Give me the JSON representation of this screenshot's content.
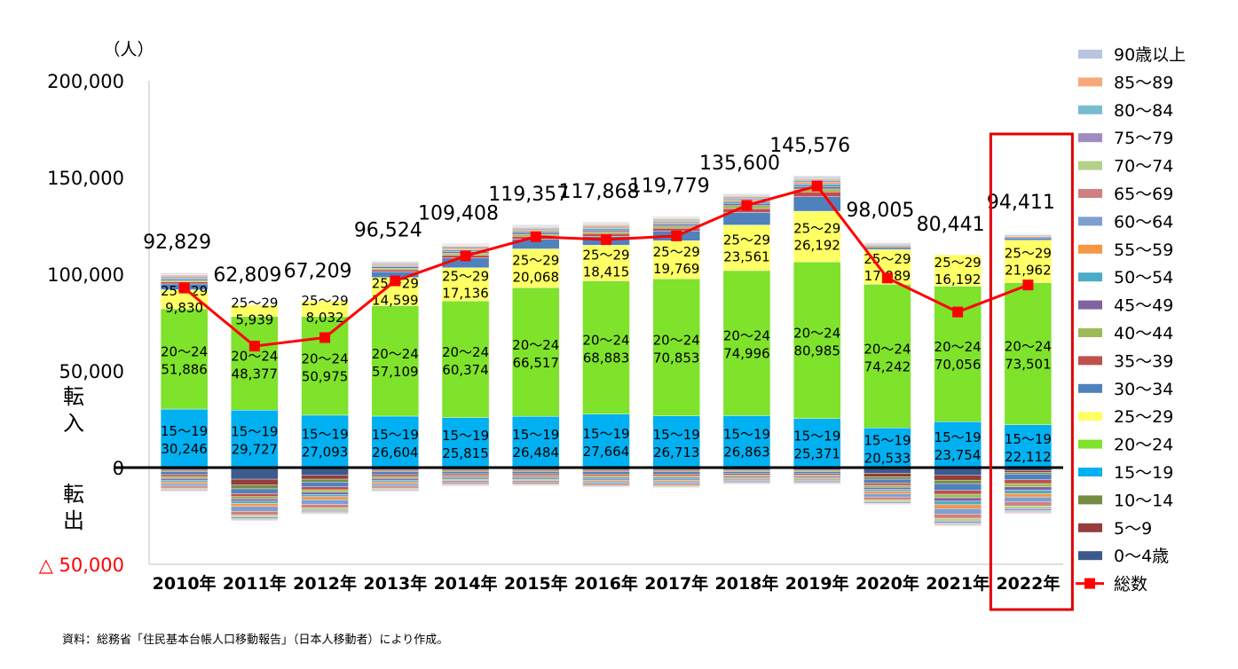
{
  "chart_data": {
    "type": "bar",
    "stacked": true,
    "unit_label": "（人）",
    "side_labels": {
      "in": "転入",
      "out": "転出"
    },
    "ylim": [
      -50000,
      200000
    ],
    "yticks": [
      {
        "value": 200000,
        "label": "200,000"
      },
      {
        "value": 150000,
        "label": "150,000"
      },
      {
        "value": 100000,
        "label": "100,000"
      },
      {
        "value": 50000,
        "label": "50,000"
      },
      {
        "value": 0,
        "label": "0"
      },
      {
        "value": -50000,
        "label": "△ 50,000"
      }
    ],
    "categories": [
      "2010年",
      "2011年",
      "2012年",
      "2013年",
      "2014年",
      "2015年",
      "2016年",
      "2017年",
      "2018年",
      "2019年",
      "2020年",
      "2021年",
      "2022年"
    ],
    "highlight_category": "2022年",
    "in_series": [
      {
        "name": "15～19",
        "color": "#00B0F0",
        "values": [
          30246,
          29727,
          27093,
          26604,
          25815,
          26484,
          27664,
          26713,
          26863,
          25371,
          20533,
          23754,
          22112
        ]
      },
      {
        "name": "20～24",
        "color": "#7FE22B",
        "values": [
          51886,
          48377,
          50975,
          57109,
          60374,
          66517,
          68883,
          70853,
          74996,
          80985,
          74242,
          70056,
          73501
        ]
      },
      {
        "name": "25～29",
        "color": "#FFFF66",
        "values": [
          9830,
          5939,
          8032,
          14599,
          17136,
          20068,
          18415,
          19769,
          23561,
          26192,
          17989,
          16192,
          21962
        ]
      },
      {
        "name": "30～34",
        "color": "#4F81BD",
        "values": [
          3000,
          0,
          0,
          3000,
          5000,
          5000,
          4500,
          5000,
          6500,
          7500,
          1000,
          0,
          1200
        ]
      },
      {
        "name": "35～39",
        "color": "#C0504D",
        "values": [
          1000,
          0,
          0,
          1000,
          1500,
          1500,
          1500,
          1500,
          2000,
          2500,
          500,
          0,
          500
        ]
      },
      {
        "name": "40～44",
        "color": "#9BBB59",
        "values": [
          800,
          0,
          0,
          800,
          1000,
          1000,
          1000,
          1000,
          1500,
          1500,
          500,
          0,
          400
        ]
      },
      {
        "name": "45～49",
        "color": "#8064A2",
        "values": [
          700,
          0,
          0,
          700,
          900,
          900,
          900,
          900,
          1200,
          1300,
          400,
          0,
          300
        ]
      },
      {
        "name": "50～54",
        "color": "#4BACC6",
        "values": [
          700,
          0,
          0,
          600,
          800,
          800,
          800,
          800,
          1000,
          1100,
          400,
          0,
          300
        ]
      },
      {
        "name": "55～59",
        "color": "#F79646",
        "values": [
          600,
          0,
          0,
          600,
          700,
          700,
          700,
          700,
          900,
          1000,
          300,
          0,
          300
        ]
      },
      {
        "name": "60～64",
        "color": "#7F9FCF",
        "values": [
          500,
          0,
          0,
          500,
          600,
          600,
          600,
          600,
          800,
          900,
          300,
          0,
          200
        ]
      },
      {
        "name": "65～69",
        "color": "#D08080",
        "values": [
          400,
          0,
          0,
          400,
          500,
          500,
          500,
          500,
          600,
          700,
          200,
          0,
          200
        ]
      },
      {
        "name": "70～74",
        "color": "#B4D08A",
        "values": [
          300,
          0,
          0,
          300,
          400,
          400,
          400,
          400,
          500,
          500,
          200,
          0,
          150
        ]
      },
      {
        "name": "75～79",
        "color": "#A08CC0",
        "values": [
          300,
          0,
          0,
          300,
          300,
          300,
          300,
          300,
          400,
          400,
          200,
          0,
          150
        ]
      },
      {
        "name": "80～84",
        "color": "#78BCD0",
        "values": [
          300,
          0,
          0,
          300,
          300,
          300,
          300,
          300,
          300,
          400,
          200,
          0,
          100
        ]
      },
      {
        "name": "85～89",
        "color": "#F8A878",
        "values": [
          200,
          0,
          0,
          200,
          300,
          300,
          300,
          300,
          300,
          300,
          200,
          0,
          100
        ]
      },
      {
        "name": "90歳以上",
        "color": "#B8C4E0",
        "values": [
          200,
          0,
          0,
          200,
          300,
          300,
          300,
          300,
          300,
          300,
          200,
          0,
          100
        ]
      }
    ],
    "out_series": [
      {
        "name": "0～4歳",
        "color": "#3C5A8C",
        "values": [
          -1000,
          -6000,
          -4000,
          -1000,
          -1000,
          -1000,
          -1000,
          -1000,
          -1000,
          -1000,
          -3000,
          -4000,
          -1500
        ]
      },
      {
        "name": "5～9",
        "color": "#963C3A",
        "values": [
          -700,
          -3000,
          -2000,
          -700,
          -700,
          -700,
          -700,
          -700,
          -600,
          -600,
          -1800,
          -2500,
          -1000
        ]
      },
      {
        "name": "10～14",
        "color": "#758C42",
        "values": [
          -500,
          -2000,
          -1500,
          -500,
          -500,
          -500,
          -500,
          -500,
          -500,
          -500,
          -1200,
          -1800,
          -800
        ]
      },
      {
        "name": "30～34",
        "color": "#4F81BD",
        "values": [
          -1500,
          -2500,
          -2500,
          -1500,
          -1000,
          -1000,
          -1200,
          -1200,
          -1000,
          -1000,
          -2000,
          -3500,
          -3000
        ]
      },
      {
        "name": "35～39",
        "color": "#C0504D",
        "values": [
          -1000,
          -1500,
          -1500,
          -1000,
          -800,
          -800,
          -900,
          -900,
          -800,
          -800,
          -1200,
          -2000,
          -2000
        ]
      },
      {
        "name": "40～44",
        "color": "#9BBB59",
        "values": [
          -900,
          -1200,
          -1200,
          -900,
          -700,
          -700,
          -800,
          -800,
          -700,
          -700,
          -1000,
          -1800,
          -1700
        ]
      },
      {
        "name": "45～49",
        "color": "#8064A2",
        "values": [
          -900,
          -1200,
          -1200,
          -900,
          -700,
          -700,
          -800,
          -800,
          -700,
          -700,
          -1000,
          -1800,
          -1700
        ]
      },
      {
        "name": "50～54",
        "color": "#4BACC6",
        "values": [
          -900,
          -1200,
          -1200,
          -900,
          -700,
          -700,
          -800,
          -800,
          -600,
          -600,
          -1000,
          -1800,
          -1700
        ]
      },
      {
        "name": "55～59",
        "color": "#F79646",
        "values": [
          -1000,
          -1500,
          -1500,
          -1000,
          -700,
          -700,
          -800,
          -800,
          -600,
          -600,
          -1200,
          -2000,
          -1800
        ]
      },
      {
        "name": "60～64",
        "color": "#7F9FCF",
        "values": [
          -1200,
          -2500,
          -2500,
          -1200,
          -1000,
          -900,
          -1000,
          -1000,
          -700,
          -700,
          -1800,
          -2800,
          -2600
        ]
      },
      {
        "name": "65～69",
        "color": "#D08080",
        "values": [
          -1000,
          -1800,
          -1800,
          -1000,
          -800,
          -800,
          -800,
          -800,
          -600,
          -600,
          -1500,
          -2200,
          -2000
        ]
      },
      {
        "name": "70～74",
        "color": "#B4D08A",
        "values": [
          -700,
          -1200,
          -1200,
          -700,
          -500,
          -500,
          -500,
          -600,
          -400,
          -400,
          -1000,
          -1500,
          -1400
        ]
      },
      {
        "name": "75～79",
        "color": "#A08CC0",
        "values": [
          -500,
          -800,
          -800,
          -500,
          -300,
          -300,
          -300,
          -400,
          -300,
          -300,
          -700,
          -1000,
          -1000
        ]
      },
      {
        "name": "80～84",
        "color": "#78BCD0",
        "values": [
          -300,
          -500,
          -500,
          -300,
          -200,
          -200,
          -200,
          -200,
          -200,
          -200,
          -400,
          -600,
          -600
        ]
      },
      {
        "name": "85～89",
        "color": "#F8A878",
        "values": [
          -300,
          -400,
          -400,
          -300,
          -200,
          -200,
          -200,
          -200,
          -200,
          -200,
          -300,
          -500,
          -500
        ]
      },
      {
        "name": "90歳以上",
        "color": "#B8C4E0",
        "values": [
          -200,
          -300,
          -300,
          -200,
          -100,
          -100,
          -100,
          -100,
          -100,
          -100,
          -200,
          -400,
          -400
        ]
      }
    ],
    "total": {
      "name": "総数",
      "color": "#FF0000",
      "values": [
        92829,
        62809,
        67209,
        96524,
        109408,
        119357,
        117868,
        119779,
        135600,
        145576,
        98005,
        80441,
        94411
      ],
      "labels": [
        "92,829",
        "62,809",
        "67,209",
        "96,524",
        "109,408",
        "119,357",
        "117,868",
        "119,779",
        "135,600",
        "145,576",
        "98,005",
        "80,441",
        "94,411"
      ]
    },
    "bar_labels": {
      "15～19": {
        "age": "15～19",
        "values": [
          "30,246",
          "29,727",
          "27,093",
          "26,604",
          "25,815",
          "26,484",
          "27,664",
          "26,713",
          "26,863",
          "25,371",
          "20,533",
          "23,754",
          "22,112"
        ]
      },
      "20～24": {
        "age": "20～24",
        "values": [
          "51,886",
          "48,377",
          "50,975",
          "57,109",
          "60,374",
          "66,517",
          "68,883",
          "70,853",
          "74,996",
          "80,985",
          "74,242",
          "70,056",
          "73,501"
        ]
      },
      "25～29": {
        "age": "25～29",
        "values": [
          "9,830",
          "5,939",
          "8,032",
          "14,599",
          "17,136",
          "20,068",
          "18,415",
          "19,769",
          "23,561",
          "26,192",
          "17,989",
          "16,192",
          "21,962"
        ]
      }
    },
    "legend": [
      {
        "name": "90歳以上",
        "color": "#B8C4E0"
      },
      {
        "name": "85～89",
        "color": "#F8A878"
      },
      {
        "name": "80～84",
        "color": "#78BCD0"
      },
      {
        "name": "75～79",
        "color": "#A08CC0"
      },
      {
        "name": "70～74",
        "color": "#B4D08A"
      },
      {
        "name": "65～69",
        "color": "#D08080"
      },
      {
        "name": "60～64",
        "color": "#7F9FCF"
      },
      {
        "name": "55～59",
        "color": "#F79646"
      },
      {
        "name": "50～54",
        "color": "#4BACC6"
      },
      {
        "name": "45～49",
        "color": "#8064A2"
      },
      {
        "name": "40～44",
        "color": "#9BBB59"
      },
      {
        "name": "35～39",
        "color": "#C0504D"
      },
      {
        "name": "30～34",
        "color": "#4F81BD"
      },
      {
        "name": "25～29",
        "color": "#FFFF66"
      },
      {
        "name": "20～24",
        "color": "#7FE22B"
      },
      {
        "name": "15～19",
        "color": "#00B0F0"
      },
      {
        "name": "10～14",
        "color": "#758C42"
      },
      {
        "name": "5～9",
        "color": "#963C3A"
      },
      {
        "name": "0～4歳",
        "color": "#3C5A8C"
      },
      {
        "name": "総数",
        "color": "#FF0000",
        "kind": "line"
      }
    ],
    "legend_placement": "right",
    "grid": false
  },
  "source_note": "資料：総務省「住民基本台帳人口移動報告」（日本人移動者）により作成。"
}
